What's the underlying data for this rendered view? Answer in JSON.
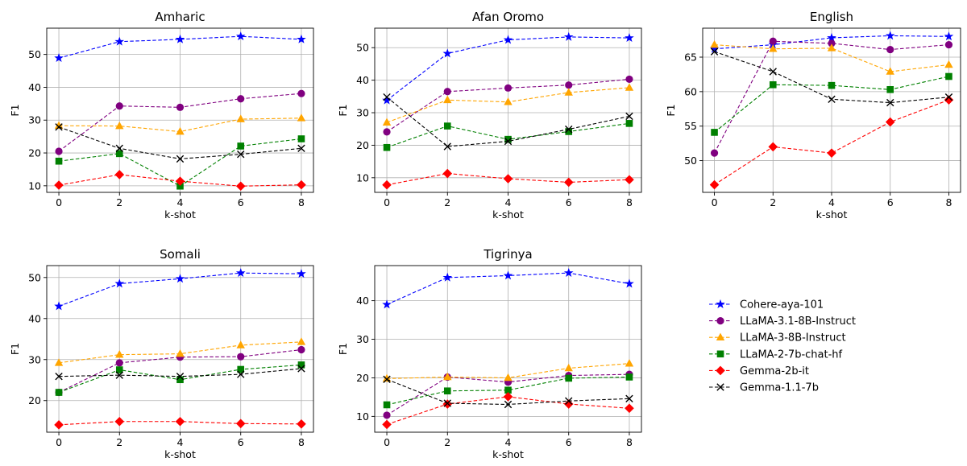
{
  "series_styles": [
    {
      "name": "Cohere-aya-101",
      "color": "#0000ff",
      "marker": "star"
    },
    {
      "name": "LLaMA-3.1-8B-Instruct",
      "color": "#800080",
      "marker": "circle"
    },
    {
      "name": "LLaMA-3-8B-Instruct",
      "color": "#ffa500",
      "marker": "triangle"
    },
    {
      "name": "LLaMA-2-7b-chat-hf",
      "color": "#008000",
      "marker": "square"
    },
    {
      "name": "Gemma-2b-it",
      "color": "#ff0000",
      "marker": "diamond"
    },
    {
      "name": "Gemma-1.1-7b",
      "color": "#000000",
      "marker": "x"
    }
  ],
  "chart_data": [
    {
      "type": "line",
      "title": "Amharic",
      "xlabel": "k-shot",
      "ylabel": "F1",
      "x": [
        0,
        2,
        4,
        6,
        8
      ],
      "xlim": [
        -0.4,
        8.4
      ],
      "ylim": [
        8,
        58
      ],
      "xticks": [
        0,
        2,
        4,
        6,
        8
      ],
      "yticks": [
        10,
        20,
        30,
        40,
        50
      ],
      "grid": true,
      "series": [
        {
          "name": "Cohere-aya-101",
          "values": [
            48.9,
            53.9,
            54.6,
            55.5,
            54.6
          ]
        },
        {
          "name": "LLaMA-3.1-8B-Instruct",
          "values": [
            20.5,
            34.3,
            33.9,
            36.5,
            38.1
          ]
        },
        {
          "name": "LLaMA-3-8B-Instruct",
          "values": [
            28.3,
            28.2,
            26.5,
            30.3,
            30.6
          ]
        },
        {
          "name": "LLaMA-2-7b-chat-hf",
          "values": [
            17.5,
            19.8,
            9.9,
            22.1,
            24.3
          ]
        },
        {
          "name": "Gemma-2b-it",
          "values": [
            10.2,
            13.4,
            11.4,
            9.9,
            10.3
          ]
        },
        {
          "name": "Gemma-1.1-7b",
          "values": [
            27.9,
            21.4,
            18.2,
            19.6,
            21.4
          ]
        }
      ]
    },
    {
      "type": "line",
      "title": "Afan Oromo",
      "xlabel": "k-shot",
      "ylabel": "F1",
      "x": [
        0,
        2,
        4,
        6,
        8
      ],
      "xlim": [
        -0.4,
        8.4
      ],
      "ylim": [
        5.5,
        56
      ],
      "xticks": [
        0,
        2,
        4,
        6,
        8
      ],
      "yticks": [
        10,
        20,
        30,
        40,
        50
      ],
      "grid": true,
      "series": [
        {
          "name": "Cohere-aya-101",
          "values": [
            33.8,
            48.2,
            52.4,
            53.3,
            53.0
          ]
        },
        {
          "name": "LLaMA-3.1-8B-Instruct",
          "values": [
            24.1,
            36.5,
            37.6,
            38.5,
            40.3
          ]
        },
        {
          "name": "LLaMA-3-8B-Instruct",
          "values": [
            27.0,
            33.9,
            33.3,
            36.2,
            37.7
          ]
        },
        {
          "name": "LLaMA-2-7b-chat-hf",
          "values": [
            19.3,
            25.9,
            21.8,
            24.2,
            26.7
          ]
        },
        {
          "name": "Gemma-2b-it",
          "values": [
            7.8,
            11.3,
            9.7,
            8.6,
            9.4
          ]
        },
        {
          "name": "Gemma-1.1-7b",
          "values": [
            34.8,
            19.6,
            21.2,
            24.9,
            28.9
          ]
        }
      ]
    },
    {
      "type": "line",
      "title": "English",
      "xlabel": "k-shot",
      "ylabel": "F1",
      "x": [
        0,
        2,
        4,
        6,
        8
      ],
      "xlim": [
        -0.4,
        8.4
      ],
      "ylim": [
        45.4,
        69.2
      ],
      "xticks": [
        0,
        2,
        4,
        6,
        8
      ],
      "yticks": [
        50,
        55,
        60,
        65
      ],
      "grid": true,
      "series": [
        {
          "name": "Cohere-aya-101",
          "values": [
            66.2,
            66.8,
            67.8,
            68.1,
            68.0
          ]
        },
        {
          "name": "LLaMA-3.1-8B-Instruct",
          "values": [
            51.1,
            67.3,
            67.0,
            66.1,
            66.8
          ]
        },
        {
          "name": "LLaMA-3-8B-Instruct",
          "values": [
            66.8,
            66.2,
            66.3,
            62.9,
            63.9
          ]
        },
        {
          "name": "LLaMA-2-7b-chat-hf",
          "values": [
            54.1,
            61.0,
            60.9,
            60.3,
            62.2
          ]
        },
        {
          "name": "Gemma-2b-it",
          "values": [
            46.5,
            52.0,
            51.1,
            55.6,
            58.8
          ]
        },
        {
          "name": "Gemma-1.1-7b",
          "values": [
            65.8,
            62.9,
            58.9,
            58.4,
            59.2
          ]
        }
      ]
    },
    {
      "type": "line",
      "title": "Somali",
      "xlabel": "k-shot",
      "ylabel": "F1",
      "x": [
        0,
        2,
        4,
        6,
        8
      ],
      "xlim": [
        -0.4,
        8.4
      ],
      "ylim": [
        12.3,
        52.9
      ],
      "xticks": [
        0,
        2,
        4,
        6,
        8
      ],
      "yticks": [
        20,
        30,
        40,
        50
      ],
      "grid": true,
      "series": [
        {
          "name": "Cohere-aya-101",
          "values": [
            43.0,
            48.5,
            49.7,
            51.1,
            50.9
          ]
        },
        {
          "name": "LLaMA-3.1-8B-Instruct",
          "values": [
            22.0,
            29.2,
            30.6,
            30.7,
            32.4
          ]
        },
        {
          "name": "LLaMA-3-8B-Instruct",
          "values": [
            29.2,
            31.2,
            31.4,
            33.5,
            34.3
          ]
        },
        {
          "name": "LLaMA-2-7b-chat-hf",
          "values": [
            22.0,
            27.5,
            25.1,
            27.6,
            28.7
          ]
        },
        {
          "name": "Gemma-2b-it",
          "values": [
            14.1,
            14.9,
            14.9,
            14.4,
            14.3
          ]
        },
        {
          "name": "Gemma-1.1-7b",
          "values": [
            25.9,
            26.2,
            25.9,
            26.4,
            27.8
          ]
        }
      ]
    },
    {
      "type": "line",
      "title": "Tigrinya",
      "xlabel": "k-shot",
      "ylabel": "F1",
      "x": [
        0,
        2,
        4,
        6,
        8
      ],
      "xlim": [
        -0.4,
        8.4
      ],
      "ylim": [
        5.9,
        49.1
      ],
      "xticks": [
        0,
        2,
        4,
        6,
        8
      ],
      "yticks": [
        10,
        20,
        30,
        40
      ],
      "grid": true,
      "series": [
        {
          "name": "Cohere-aya-101",
          "values": [
            39.0,
            46.0,
            46.5,
            47.2,
            44.4
          ]
        },
        {
          "name": "LLaMA-3.1-8B-Instruct",
          "values": [
            10.3,
            20.2,
            18.9,
            20.6,
            20.9
          ]
        },
        {
          "name": "LLaMA-3-8B-Instruct",
          "values": [
            19.8,
            20.2,
            20.0,
            22.5,
            23.7
          ]
        },
        {
          "name": "LLaMA-2-7b-chat-hf",
          "values": [
            13.0,
            16.6,
            16.8,
            19.9,
            20.2
          ]
        },
        {
          "name": "Gemma-2b-it",
          "values": [
            7.9,
            13.2,
            15.1,
            13.2,
            12.1
          ]
        },
        {
          "name": "Gemma-1.1-7b",
          "values": [
            19.6,
            13.4,
            13.1,
            14.0,
            14.6
          ]
        }
      ]
    }
  ]
}
